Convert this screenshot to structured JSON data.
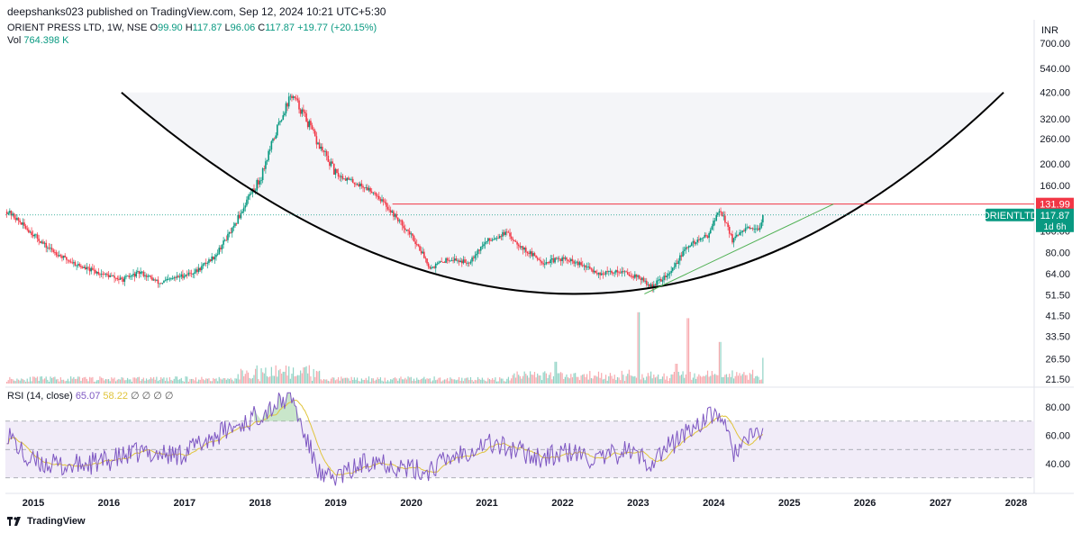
{
  "header": {
    "publisher_line": "deepshanks023 published on TradingView.com, Sep 12, 2024 10:21 UTC+5:30"
  },
  "legend": {
    "symbol": "ORIENT PRESS LTD, 1W, NSE",
    "o_label": "O",
    "o_value": "99.90",
    "h_label": "H",
    "h_value": "117.87",
    "l_label": "L",
    "l_value": "96.06",
    "c_label": "C",
    "c_value": "117.87",
    "change": "+19.77 (+20.15%)",
    "vol_label": "Vol",
    "vol_value": "764.398 K"
  },
  "rsi_legend": {
    "label": "RSI (14, close)",
    "rsi_value": "65.07",
    "ma_value": "58.22",
    "nulls": "∅ ∅ ∅ ∅"
  },
  "currency": "INR",
  "footer": {
    "brand": "TradingView"
  },
  "colors": {
    "up": "#089981",
    "down": "#f23645",
    "rsi": "#7e57c2",
    "rsi_ma": "#e0c43b",
    "trendline": "#4caf50",
    "resistance": "#f23645",
    "curve": "#000000",
    "band": "#ede7f6"
  },
  "chart_data": {
    "type": "candlestick",
    "price_axis": {
      "scale": "log",
      "ticks": [
        "700.00",
        "540.00",
        "420.00",
        "320.00",
        "260.00",
        "200.00",
        "160.00",
        "100.00",
        "80.00",
        "64.00",
        "51.50",
        "41.50",
        "33.50",
        "26.50",
        "21.50"
      ]
    },
    "x_ticks": [
      "2015",
      "2016",
      "2017",
      "2018",
      "2019",
      "2020",
      "2021",
      "2022",
      "2023",
      "2024",
      "2025",
      "2026",
      "2027",
      "2028"
    ],
    "price_anchors": [
      [
        "2014-09",
        122
      ],
      [
        "2014-12",
        102
      ],
      [
        "2015-03",
        85
      ],
      [
        "2015-06",
        75
      ],
      [
        "2015-09",
        68
      ],
      [
        "2015-12",
        64
      ],
      [
        "2016-03",
        60
      ],
      [
        "2016-06",
        65
      ],
      [
        "2016-09",
        58
      ],
      [
        "2016-12",
        62
      ],
      [
        "2017-03",
        66
      ],
      [
        "2017-06",
        78
      ],
      [
        "2017-09",
        105
      ],
      [
        "2017-11",
        140
      ],
      [
        "2018-01",
        170
      ],
      [
        "2018-03",
        250
      ],
      [
        "2018-05",
        360
      ],
      [
        "2018-06",
        410
      ],
      [
        "2018-08",
        330
      ],
      [
        "2018-10",
        250
      ],
      [
        "2019-01",
        180
      ],
      [
        "2019-04",
        165
      ],
      [
        "2019-07",
        150
      ],
      [
        "2019-10",
        120
      ],
      [
        "2020-01",
        95
      ],
      [
        "2020-04",
        68
      ],
      [
        "2020-07",
        75
      ],
      [
        "2020-10",
        72
      ],
      [
        "2021-01",
        90
      ],
      [
        "2021-04",
        98
      ],
      [
        "2021-07",
        82
      ],
      [
        "2021-10",
        72
      ],
      [
        "2022-01",
        75
      ],
      [
        "2022-04",
        70
      ],
      [
        "2022-07",
        64
      ],
      [
        "2022-10",
        66
      ],
      [
        "2023-01",
        62
      ],
      [
        "2023-03",
        56
      ],
      [
        "2023-06",
        64
      ],
      [
        "2023-09",
        86
      ],
      [
        "2023-12",
        95
      ],
      [
        "2024-02",
        125
      ],
      [
        "2024-04",
        90
      ],
      [
        "2024-06",
        102
      ],
      [
        "2024-08",
        100
      ],
      [
        "2024-09",
        117.87
      ]
    ],
    "volume_spikes": [
      [
        "2023-01",
        0.72
      ],
      [
        "2023-09",
        0.66
      ],
      [
        "2024-02",
        0.42
      ],
      [
        "2021-12",
        0.22
      ],
      [
        "2024-09",
        0.26
      ],
      [
        "2023-07",
        0.2
      ]
    ],
    "rsi_anchors": [
      [
        "2014-09",
        62
      ],
      [
        "2014-12",
        42
      ],
      [
        "2015-03",
        40
      ],
      [
        "2015-06",
        38
      ],
      [
        "2015-12",
        41
      ],
      [
        "2016-06",
        48
      ],
      [
        "2016-12",
        46
      ],
      [
        "2017-06",
        60
      ],
      [
        "2017-11",
        70
      ],
      [
        "2018-02",
        78
      ],
      [
        "2018-06",
        88
      ],
      [
        "2018-08",
        60
      ],
      [
        "2018-11",
        28
      ],
      [
        "2019-03",
        34
      ],
      [
        "2019-07",
        44
      ],
      [
        "2019-11",
        38
      ],
      [
        "2020-03",
        34
      ],
      [
        "2020-08",
        46
      ],
      [
        "2021-01",
        55
      ],
      [
        "2021-05",
        50
      ],
      [
        "2021-10",
        44
      ],
      [
        "2022-02",
        48
      ],
      [
        "2022-07",
        42
      ],
      [
        "2022-11",
        50
      ],
      [
        "2023-03",
        41
      ],
      [
        "2023-08",
        60
      ],
      [
        "2023-11",
        70
      ],
      [
        "2024-02",
        76
      ],
      [
        "2024-04",
        48
      ],
      [
        "2024-07",
        58
      ],
      [
        "2024-09",
        65
      ]
    ],
    "rsi_axis": {
      "ticks": [
        "80.00",
        "60.00",
        "40.00"
      ],
      "levels": [
        70,
        50,
        30
      ]
    },
    "resistance_level": 131.99,
    "price_labels": {
      "resistance": "131.99",
      "symbol_tag": "ORIENTLTD",
      "last_price": "117.87",
      "countdown": "1d 6h"
    },
    "cup_curve": [
      [
        "2016-03",
        420
      ],
      [
        "2022-03",
        52
      ],
      [
        "2027-11",
        420
      ]
    ],
    "trendline": [
      [
        "2023-02",
        52
      ],
      [
        "2025-08",
        131.99
      ]
    ]
  }
}
